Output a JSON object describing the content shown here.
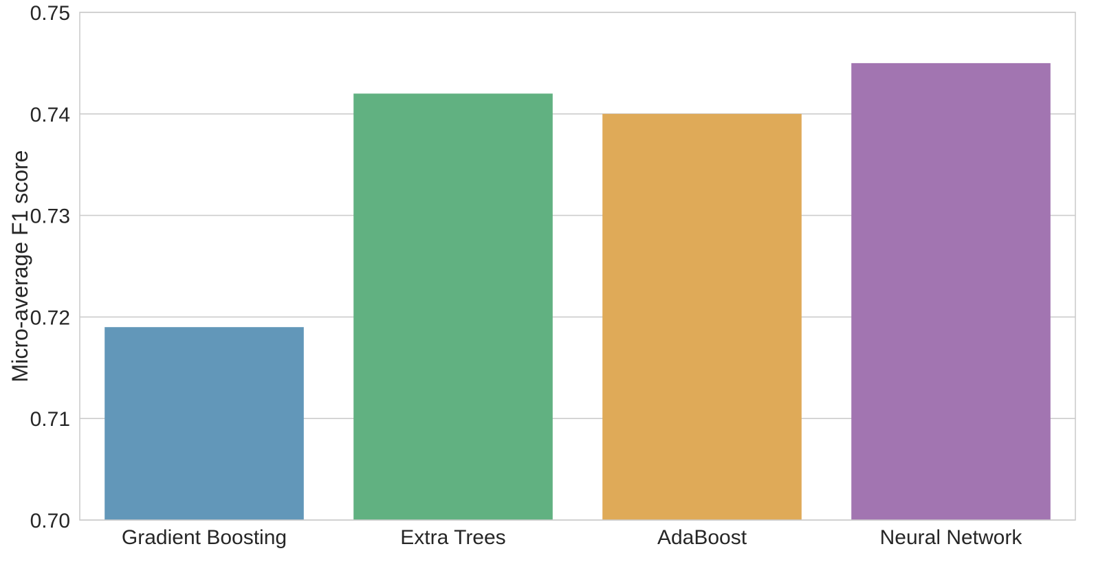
{
  "chart_data": {
    "type": "bar",
    "categories": [
      "Gradient Boosting",
      "Extra Trees",
      "AdaBoost",
      "Neural Network"
    ],
    "values": [
      0.719,
      0.742,
      0.74,
      0.745
    ],
    "colors": [
      "#6297b9",
      "#61b181",
      "#dfaa58",
      "#a275b1"
    ],
    "title": "",
    "xlabel": "",
    "ylabel": "Micro-average F1 score",
    "ylim": [
      0.7,
      0.75
    ],
    "yticks": [
      "0.70",
      "0.71",
      "0.72",
      "0.73",
      "0.74",
      "0.75"
    ],
    "grid": "horizontal",
    "grid_color": "#cccccc",
    "frame_color": "#cccccc"
  }
}
